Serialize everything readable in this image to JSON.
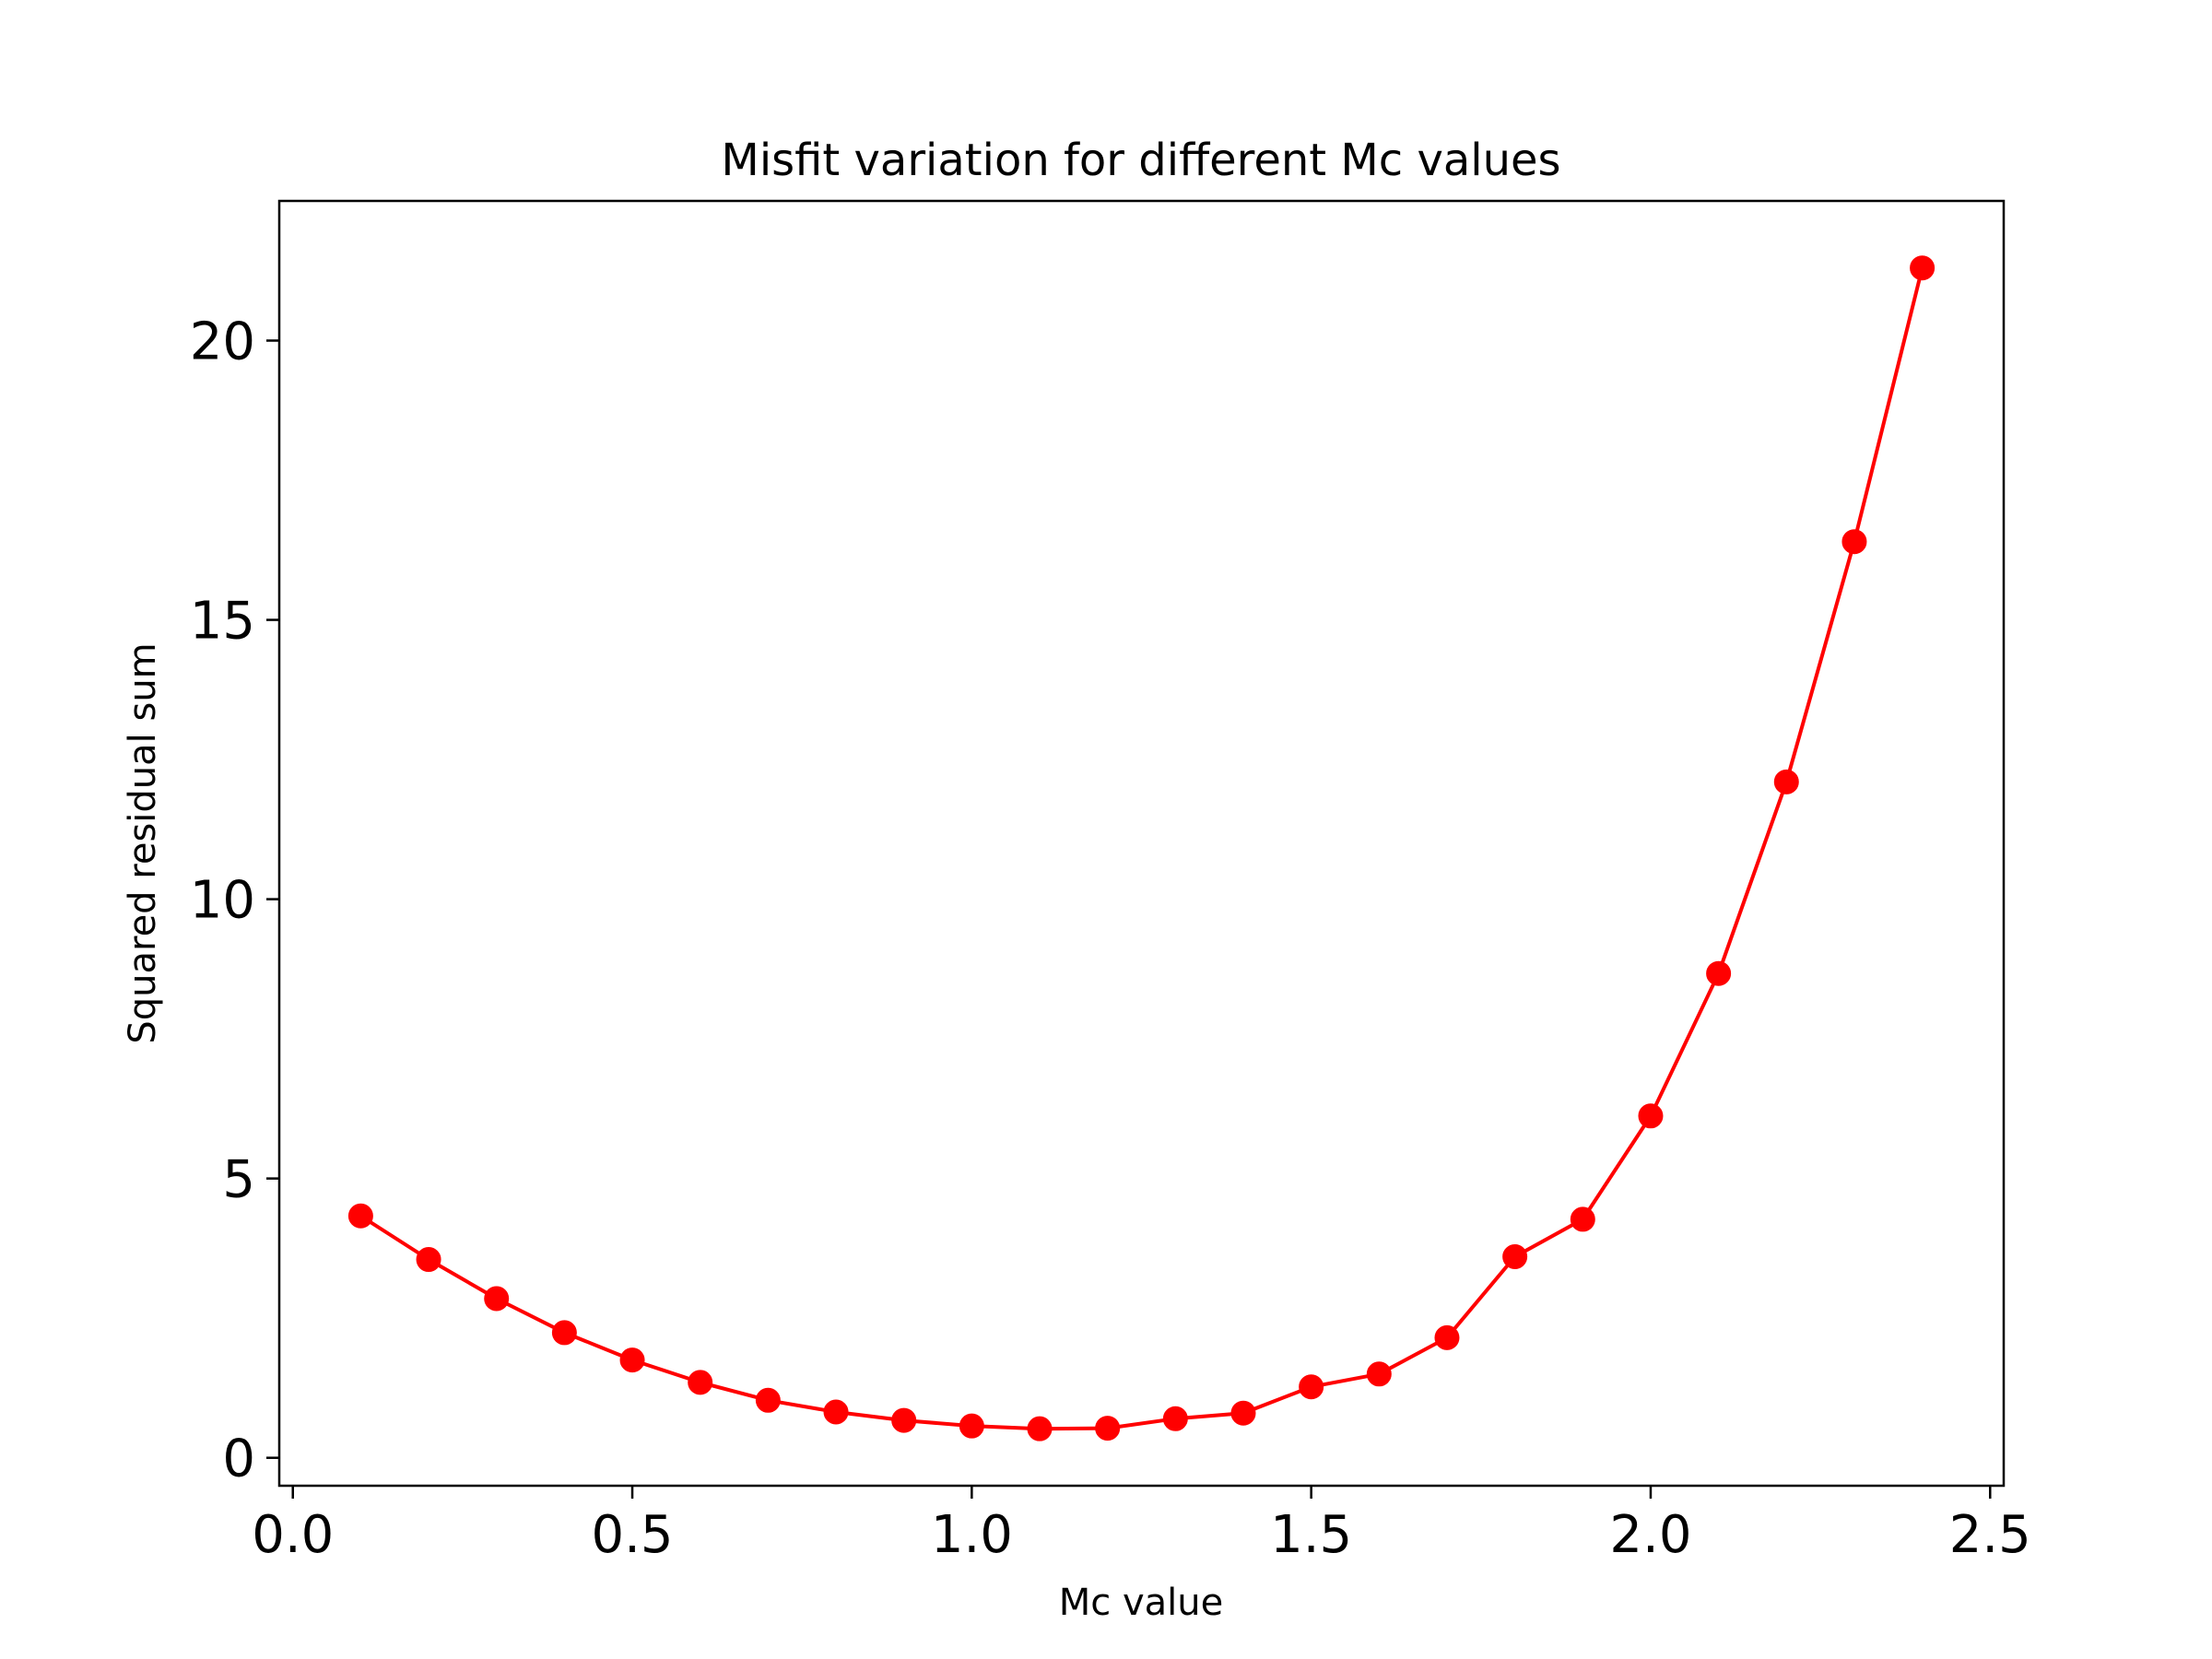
{
  "chart_data": {
    "type": "line",
    "title": "Misfit variation for different Mc values",
    "xlabel": "Mc value",
    "ylabel": "Squared residual sum",
    "xlim": [
      -0.02,
      2.52
    ],
    "ylim": [
      -0.5,
      22.5
    ],
    "xticks": [
      0.0,
      0.5,
      1.0,
      1.5,
      2.0,
      2.5
    ],
    "xtick_labels": [
      "0.0",
      "0.5",
      "1.0",
      "1.5",
      "2.0",
      "2.5"
    ],
    "yticks": [
      0,
      5,
      10,
      15,
      20
    ],
    "ytick_labels": [
      "0",
      "5",
      "10",
      "15",
      "20"
    ],
    "grid": false,
    "legend": "none",
    "series": [
      {
        "color": "#ff0000",
        "marker": "circle",
        "x": [
          0.1,
          0.2,
          0.3,
          0.4,
          0.5,
          0.6,
          0.7,
          0.8,
          0.9,
          1.0,
          1.1,
          1.2,
          1.3,
          1.4,
          1.5,
          1.6,
          1.7,
          1.8,
          1.9,
          2.0,
          2.1,
          2.2,
          2.3,
          2.4
        ],
        "y": [
          4.33,
          3.55,
          2.85,
          2.24,
          1.75,
          1.35,
          1.03,
          0.82,
          0.67,
          0.57,
          0.52,
          0.53,
          0.7,
          0.8,
          1.27,
          1.5,
          2.15,
          3.6,
          4.27,
          6.12,
          8.67,
          12.1,
          16.4,
          21.3
        ]
      }
    ]
  }
}
